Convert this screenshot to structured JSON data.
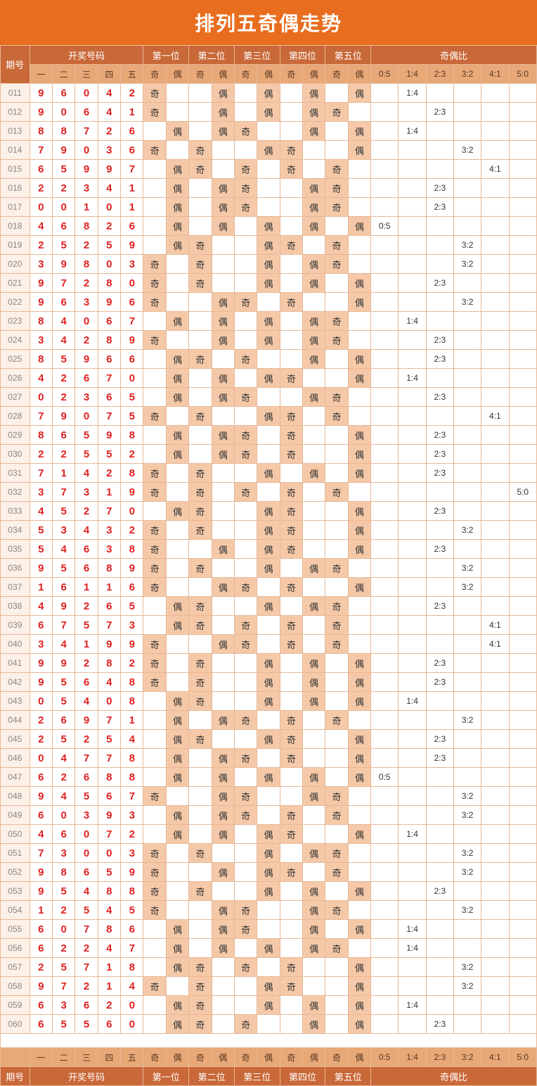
{
  "title": "排列五奇偶走势",
  "colors": {
    "title_bg": "#e86d1f",
    "header_bg": "#c96838",
    "subheader_bg": "#e8a878",
    "border": "#e8b896",
    "number": "#e02020",
    "qi_bg": "#f5c9a8",
    "period_bg": "#fdf0e6"
  },
  "header": {
    "period": "期号",
    "draw": "开奖号码",
    "draw_cols": [
      "一",
      "二",
      "三",
      "四",
      "五"
    ],
    "positions": [
      "第一位",
      "第二位",
      "第三位",
      "第四位",
      "第五位"
    ],
    "pos_sub": [
      "奇",
      "偶"
    ],
    "ratio": "奇偶比",
    "ratio_cols": [
      "0:5",
      "1:4",
      "2:3",
      "3:2",
      "4:1",
      "5:0"
    ]
  },
  "qi_label": "奇",
  "ou_label": "偶",
  "rows": [
    {
      "p": "011",
      "n": [
        9,
        6,
        0,
        4,
        2
      ],
      "q": [
        1,
        0,
        0,
        0,
        0
      ],
      "r": "1:4"
    },
    {
      "p": "012",
      "n": [
        9,
        0,
        6,
        4,
        1
      ],
      "q": [
        1,
        0,
        0,
        0,
        1
      ],
      "r": "2:3"
    },
    {
      "p": "013",
      "n": [
        8,
        8,
        7,
        2,
        6
      ],
      "q": [
        0,
        0,
        1,
        0,
        0
      ],
      "r": "1:4"
    },
    {
      "p": "014",
      "n": [
        7,
        9,
        0,
        3,
        6
      ],
      "q": [
        1,
        1,
        0,
        1,
        0
      ],
      "r": "3:2"
    },
    {
      "p": "015",
      "n": [
        6,
        5,
        9,
        9,
        7
      ],
      "q": [
        0,
        1,
        1,
        1,
        1
      ],
      "r": "4:1"
    },
    {
      "p": "016",
      "n": [
        2,
        2,
        3,
        4,
        1
      ],
      "q": [
        0,
        0,
        1,
        0,
        1
      ],
      "r": "2:3"
    },
    {
      "p": "017",
      "n": [
        0,
        0,
        1,
        0,
        1
      ],
      "q": [
        0,
        0,
        1,
        0,
        1
      ],
      "r": "2:3"
    },
    {
      "p": "018",
      "n": [
        4,
        6,
        8,
        2,
        6
      ],
      "q": [
        0,
        0,
        0,
        0,
        0
      ],
      "r": "0:5"
    },
    {
      "p": "019",
      "n": [
        2,
        5,
        2,
        5,
        9
      ],
      "q": [
        0,
        1,
        0,
        1,
        1
      ],
      "r": "3:2"
    },
    {
      "p": "020",
      "n": [
        3,
        9,
        8,
        0,
        3
      ],
      "q": [
        1,
        1,
        0,
        0,
        1
      ],
      "r": "3:2"
    },
    {
      "p": "021",
      "n": [
        9,
        7,
        2,
        8,
        0
      ],
      "q": [
        1,
        1,
        0,
        0,
        0
      ],
      "r": "2:3"
    },
    {
      "p": "022",
      "n": [
        9,
        6,
        3,
        9,
        6
      ],
      "q": [
        1,
        0,
        1,
        1,
        0
      ],
      "r": "3:2"
    },
    {
      "p": "023",
      "n": [
        8,
        4,
        0,
        6,
        7
      ],
      "q": [
        0,
        0,
        0,
        0,
        1
      ],
      "r": "1:4"
    },
    {
      "p": "024",
      "n": [
        3,
        4,
        2,
        8,
        9
      ],
      "q": [
        1,
        0,
        0,
        0,
        1
      ],
      "r": "2:3"
    },
    {
      "p": "025",
      "n": [
        8,
        5,
        9,
        6,
        6
      ],
      "q": [
        0,
        1,
        1,
        0,
        0
      ],
      "r": "2:3"
    },
    {
      "p": "026",
      "n": [
        4,
        2,
        6,
        7,
        0
      ],
      "q": [
        0,
        0,
        0,
        1,
        0
      ],
      "r": "1:4"
    },
    {
      "p": "027",
      "n": [
        0,
        2,
        3,
        6,
        5
      ],
      "q": [
        0,
        0,
        1,
        0,
        1
      ],
      "r": "2:3"
    },
    {
      "p": "028",
      "n": [
        7,
        9,
        0,
        7,
        5
      ],
      "q": [
        1,
        1,
        0,
        1,
        1
      ],
      "r": "4:1"
    },
    {
      "p": "029",
      "n": [
        8,
        6,
        5,
        9,
        8
      ],
      "q": [
        0,
        0,
        1,
        1,
        0
      ],
      "r": "2:3"
    },
    {
      "p": "030",
      "n": [
        2,
        2,
        5,
        5,
        2
      ],
      "q": [
        0,
        0,
        1,
        1,
        0
      ],
      "r": "2:3"
    },
    {
      "p": "031",
      "n": [
        7,
        1,
        4,
        2,
        8
      ],
      "q": [
        1,
        1,
        0,
        0,
        0
      ],
      "r": "2:3"
    },
    {
      "p": "032",
      "n": [
        3,
        7,
        3,
        1,
        9
      ],
      "q": [
        1,
        1,
        1,
        1,
        1
      ],
      "r": "5:0"
    },
    {
      "p": "033",
      "n": [
        4,
        5,
        2,
        7,
        0
      ],
      "q": [
        0,
        1,
        0,
        1,
        0
      ],
      "r": "2:3"
    },
    {
      "p": "034",
      "n": [
        5,
        3,
        4,
        3,
        2
      ],
      "q": [
        1,
        1,
        0,
        1,
        0
      ],
      "r": "3:2"
    },
    {
      "p": "035",
      "n": [
        5,
        4,
        6,
        3,
        8
      ],
      "q": [
        1,
        0,
        0,
        1,
        0
      ],
      "r": "2:3"
    },
    {
      "p": "036",
      "n": [
        9,
        5,
        6,
        8,
        9
      ],
      "q": [
        1,
        1,
        0,
        0,
        1
      ],
      "r": "3:2"
    },
    {
      "p": "037",
      "n": [
        1,
        6,
        1,
        1,
        6
      ],
      "q": [
        1,
        0,
        1,
        1,
        0
      ],
      "r": "3:2"
    },
    {
      "p": "038",
      "n": [
        4,
        9,
        2,
        6,
        5
      ],
      "q": [
        0,
        1,
        0,
        0,
        1
      ],
      "r": "2:3"
    },
    {
      "p": "039",
      "n": [
        6,
        7,
        5,
        7,
        3
      ],
      "q": [
        0,
        1,
        1,
        1,
        1
      ],
      "r": "4:1"
    },
    {
      "p": "040",
      "n": [
        3,
        4,
        1,
        9,
        9
      ],
      "q": [
        1,
        0,
        1,
        1,
        1
      ],
      "r": "4:1"
    },
    {
      "p": "041",
      "n": [
        9,
        9,
        2,
        8,
        2
      ],
      "q": [
        1,
        1,
        0,
        0,
        0
      ],
      "r": "2:3"
    },
    {
      "p": "042",
      "n": [
        9,
        5,
        6,
        4,
        8
      ],
      "q": [
        1,
        1,
        0,
        0,
        0
      ],
      "r": "2:3"
    },
    {
      "p": "043",
      "n": [
        0,
        5,
        4,
        0,
        8
      ],
      "q": [
        0,
        1,
        0,
        0,
        0
      ],
      "r": "1:4"
    },
    {
      "p": "044",
      "n": [
        2,
        6,
        9,
        7,
        1
      ],
      "q": [
        0,
        0,
        1,
        1,
        1
      ],
      "r": "3:2"
    },
    {
      "p": "045",
      "n": [
        2,
        5,
        2,
        5,
        4
      ],
      "q": [
        0,
        1,
        0,
        1,
        0
      ],
      "r": "2:3"
    },
    {
      "p": "046",
      "n": [
        0,
        4,
        7,
        7,
        8
      ],
      "q": [
        0,
        0,
        1,
        1,
        0
      ],
      "r": "2:3"
    },
    {
      "p": "047",
      "n": [
        6,
        2,
        6,
        8,
        8
      ],
      "q": [
        0,
        0,
        0,
        0,
        0
      ],
      "r": "0:5"
    },
    {
      "p": "048",
      "n": [
        9,
        4,
        5,
        6,
        7
      ],
      "q": [
        1,
        0,
        1,
        0,
        1
      ],
      "r": "3:2"
    },
    {
      "p": "049",
      "n": [
        6,
        0,
        3,
        9,
        3
      ],
      "q": [
        0,
        0,
        1,
        1,
        1
      ],
      "r": "3:2"
    },
    {
      "p": "050",
      "n": [
        4,
        6,
        0,
        7,
        2
      ],
      "q": [
        0,
        0,
        0,
        1,
        0
      ],
      "r": "1:4"
    },
    {
      "p": "051",
      "n": [
        7,
        3,
        0,
        0,
        3
      ],
      "q": [
        1,
        1,
        0,
        0,
        1
      ],
      "r": "3:2"
    },
    {
      "p": "052",
      "n": [
        9,
        8,
        6,
        5,
        9
      ],
      "q": [
        1,
        0,
        0,
        1,
        1
      ],
      "r": "3:2"
    },
    {
      "p": "053",
      "n": [
        9,
        5,
        4,
        8,
        8
      ],
      "q": [
        1,
        1,
        0,
        0,
        0
      ],
      "r": "2:3"
    },
    {
      "p": "054",
      "n": [
        1,
        2,
        5,
        4,
        5
      ],
      "q": [
        1,
        0,
        1,
        0,
        1
      ],
      "r": "3:2"
    },
    {
      "p": "055",
      "n": [
        6,
        0,
        7,
        8,
        6
      ],
      "q": [
        0,
        0,
        1,
        0,
        0
      ],
      "r": "1:4"
    },
    {
      "p": "056",
      "n": [
        6,
        2,
        2,
        4,
        7
      ],
      "q": [
        0,
        0,
        0,
        0,
        1
      ],
      "r": "1:4"
    },
    {
      "p": "057",
      "n": [
        2,
        5,
        7,
        1,
        8
      ],
      "q": [
        0,
        1,
        1,
        1,
        0
      ],
      "r": "3:2"
    },
    {
      "p": "058",
      "n": [
        9,
        7,
        2,
        1,
        4
      ],
      "q": [
        1,
        1,
        0,
        1,
        0
      ],
      "r": "3:2"
    },
    {
      "p": "059",
      "n": [
        6,
        3,
        6,
        2,
        0
      ],
      "q": [
        0,
        1,
        0,
        0,
        0
      ],
      "r": "1:4"
    },
    {
      "p": "060",
      "n": [
        6,
        5,
        5,
        6,
        0
      ],
      "q": [
        0,
        1,
        1,
        0,
        0
      ],
      "r": "2:3"
    }
  ]
}
